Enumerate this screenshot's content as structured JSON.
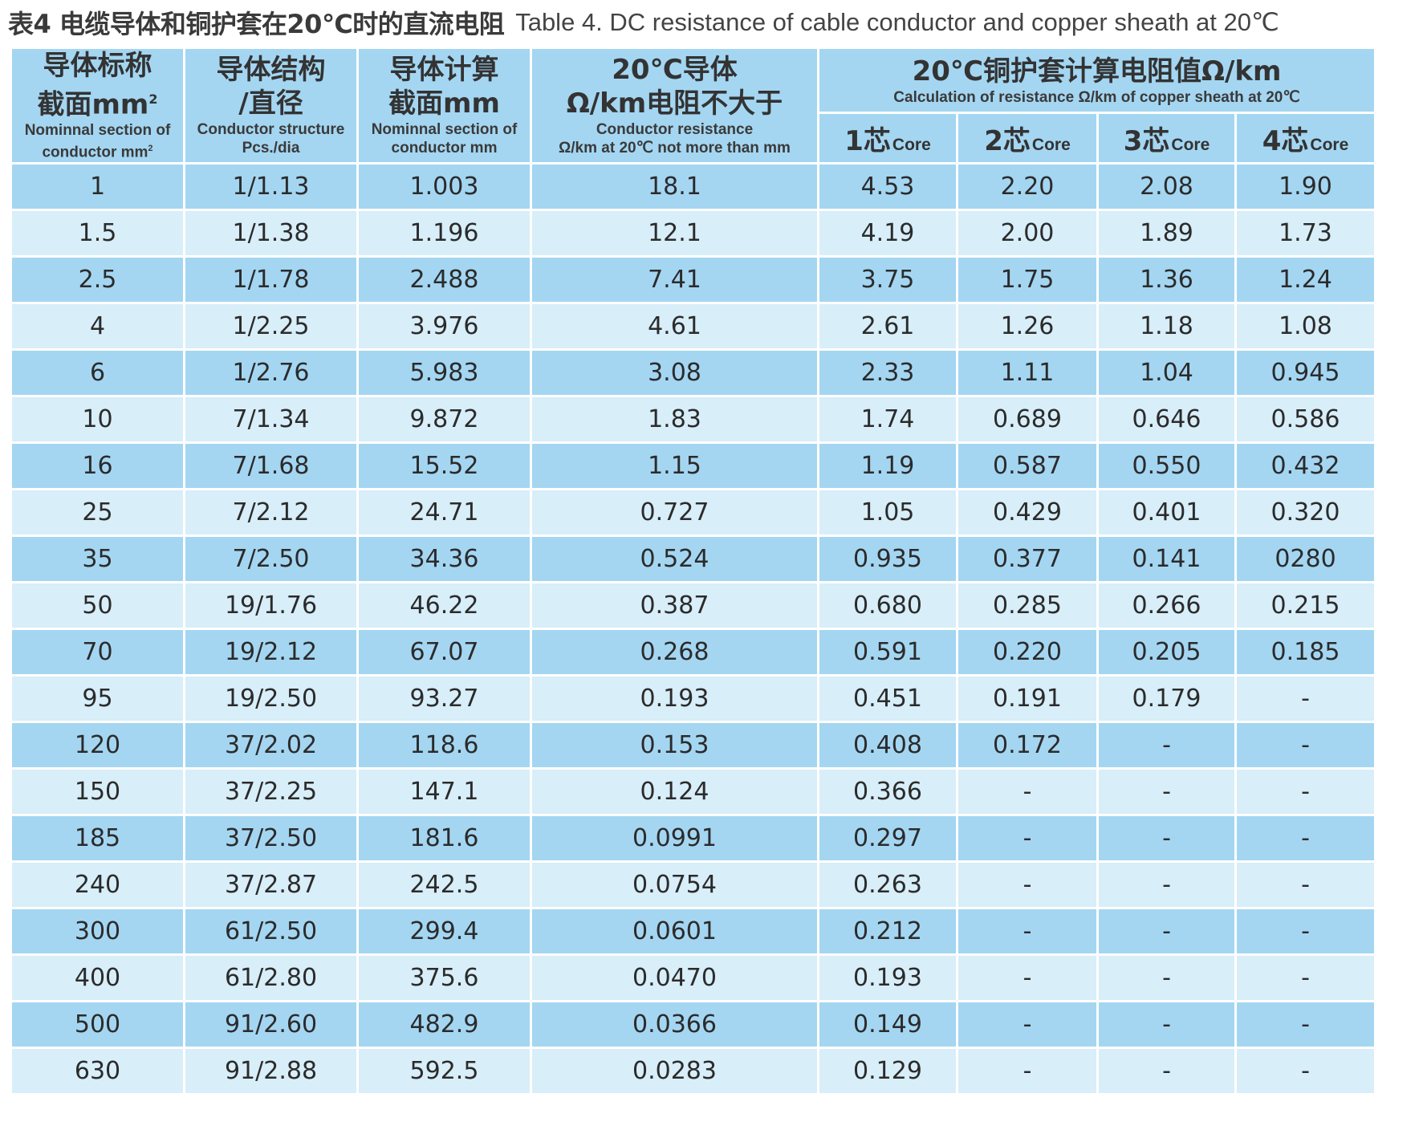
{
  "title": {
    "cn": "表4 电缆导体和铜护套在20℃时的直流电阻",
    "en": "Table 4. DC resistance of cable conductor and copper sheath at 20℃"
  },
  "headers": {
    "section": {
      "cn_line1": "导体标称",
      "cn_line2": "截面mm",
      "sup": "2",
      "en_line1": "Nominnal section of",
      "en_line2": "conductor mm",
      "en_sup": "2"
    },
    "structure": {
      "cn_line1": "导体结构",
      "cn_line2": "/直径",
      "en_line1": "Conductor structure",
      "en_line2": "Pcs./dia"
    },
    "calc_section": {
      "cn_line1": "导体计算",
      "cn_line2": "截面mm",
      "en_line1": "Nominnal section of",
      "en_line2": "conductor mm"
    },
    "conductor_res": {
      "cn_line1": "20℃导体",
      "cn_line2": "Ω/km电阻不大于",
      "en_line1": "Conductor resistance",
      "en_line2": "Ω/km at 20℃ not more than mm"
    },
    "sheath": {
      "cn": "20℃铜护套计算电阻值Ω/km",
      "en": "Calculation of resistance Ω/km of copper sheath at  20℃"
    },
    "cores": [
      {
        "num": "1芯",
        "en": "Core"
      },
      {
        "num": "2芯",
        "en": "Core"
      },
      {
        "num": "3芯",
        "en": "Core"
      },
      {
        "num": "4芯",
        "en": "Core"
      }
    ]
  },
  "rows": [
    [
      "1",
      "1/1.13",
      "1.003",
      "18.1",
      "4.53",
      "2.20",
      "2.08",
      "1.90"
    ],
    [
      "1.5",
      "1/1.38",
      "1.196",
      "12.1",
      "4.19",
      "2.00",
      "1.89",
      "1.73"
    ],
    [
      "2.5",
      "1/1.78",
      "2.488",
      "7.41",
      "3.75",
      "1.75",
      "1.36",
      "1.24"
    ],
    [
      "4",
      "1/2.25",
      "3.976",
      "4.61",
      "2.61",
      "1.26",
      "1.18",
      "1.08"
    ],
    [
      "6",
      "1/2.76",
      "5.983",
      "3.08",
      "2.33",
      "1.11",
      "1.04",
      "0.945"
    ],
    [
      "10",
      "7/1.34",
      "9.872",
      "1.83",
      "1.74",
      "0.689",
      "0.646",
      "0.586"
    ],
    [
      "16",
      "7/1.68",
      "15.52",
      "1.15",
      "1.19",
      "0.587",
      "0.550",
      "0.432"
    ],
    [
      "25",
      "7/2.12",
      "24.71",
      "0.727",
      "1.05",
      "0.429",
      "0.401",
      "0.320"
    ],
    [
      "35",
      "7/2.50",
      "34.36",
      "0.524",
      "0.935",
      "0.377",
      "0.141",
      "0280"
    ],
    [
      "50",
      "19/1.76",
      "46.22",
      "0.387",
      "0.680",
      "0.285",
      "0.266",
      "0.215"
    ],
    [
      "70",
      "19/2.12",
      "67.07",
      "0.268",
      "0.591",
      "0.220",
      "0.205",
      "0.185"
    ],
    [
      "95",
      "19/2.50",
      "93.27",
      "0.193",
      "0.451",
      "0.191",
      "0.179",
      "-"
    ],
    [
      "120",
      "37/2.02",
      "118.6",
      "0.153",
      "0.408",
      "0.172",
      "-",
      "-"
    ],
    [
      "150",
      "37/2.25",
      "147.1",
      "0.124",
      "0.366",
      "-",
      "-",
      "-"
    ],
    [
      "185",
      "37/2.50",
      "181.6",
      "0.0991",
      "0.297",
      "-",
      "-",
      "-"
    ],
    [
      "240",
      "37/2.87",
      "242.5",
      "0.0754",
      "0.263",
      "-",
      "-",
      "-"
    ],
    [
      "300",
      "61/2.50",
      "299.4",
      "0.0601",
      "0.212",
      "-",
      "-",
      "-"
    ],
    [
      "400",
      "61/2.80",
      "375.6",
      "0.0470",
      "0.193",
      "-",
      "-",
      "-"
    ],
    [
      "500",
      "91/2.60",
      "482.9",
      "0.0366",
      "0.149",
      "-",
      "-",
      "-"
    ],
    [
      "630",
      "91/2.88",
      "592.5",
      "0.0283",
      "0.129",
      "-",
      "-",
      "-"
    ]
  ],
  "colors": {
    "dark_row": "#a4d6f2",
    "light_row": "#d8eef9",
    "border": "#ffffff"
  }
}
